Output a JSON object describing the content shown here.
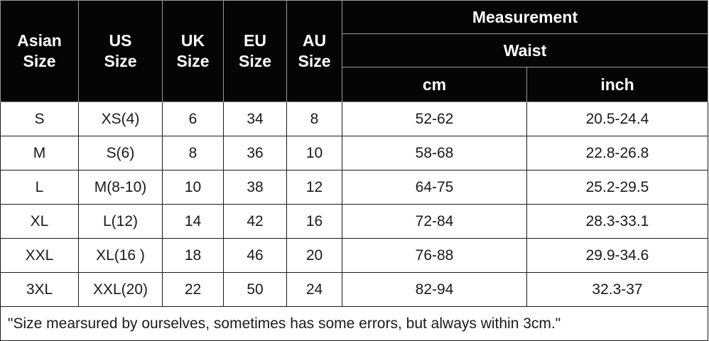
{
  "header": {
    "asian_size": [
      "Asian",
      "Size"
    ],
    "us_size": [
      "US",
      "Size"
    ],
    "uk_size": [
      "UK",
      "Size"
    ],
    "eu_size": [
      "EU",
      "Size"
    ],
    "au_size": [
      "AU",
      "Size"
    ],
    "measurement": "Measurement",
    "waist": "Waist",
    "cm": "cm",
    "inch": "inch"
  },
  "rows": [
    [
      "S",
      "XS(4)",
      "6",
      "34",
      "8",
      "52-62",
      "20.5-24.4"
    ],
    [
      "M",
      "S(6)",
      "8",
      "36",
      "10",
      "58-68",
      "22.8-26.8"
    ],
    [
      "L",
      "M(8-10)",
      "10",
      "38",
      "12",
      "64-75",
      "25.2-29.5"
    ],
    [
      "XL",
      "L(12)",
      "14",
      "42",
      "16",
      "72-84",
      "28.3-33.1"
    ],
    [
      "XXL",
      "XL(16 )",
      "18",
      "46",
      "20",
      "76-88",
      "29.9-34.6"
    ],
    [
      "3XL",
      "XXL(20)",
      "22",
      "50",
      "24",
      "82-94",
      "32.3-37"
    ]
  ],
  "footnote": "\"Size mearsured by ourselves, sometimes has some errors, but always within 3cm.\""
}
